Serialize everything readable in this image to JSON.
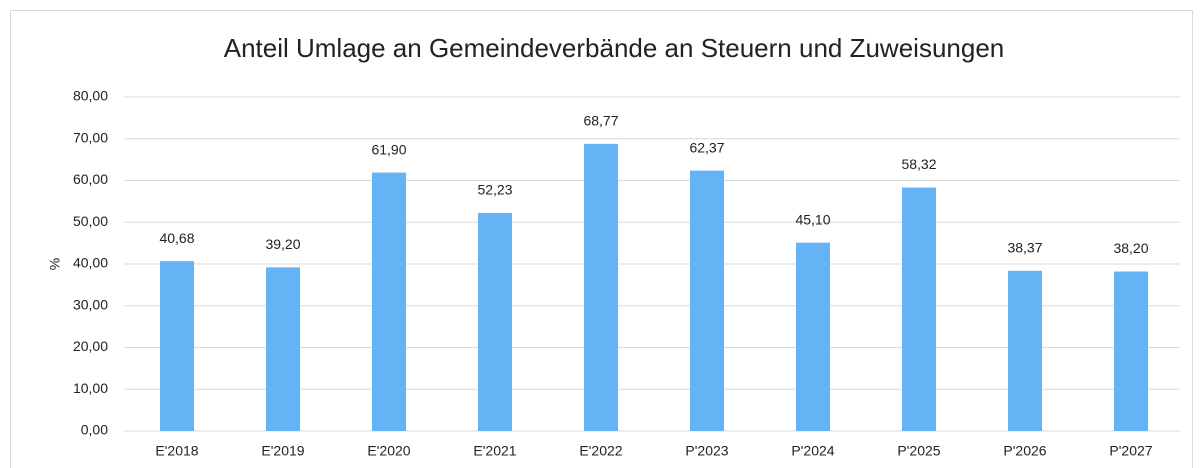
{
  "chart_data": {
    "type": "bar",
    "title": "Anteil Umlage an Gemeindeverbände an Steuern und Zuweisungen",
    "ylabel": "%",
    "categories": [
      "E'2018",
      "E'2019",
      "E'2020",
      "E'2021",
      "E'2022",
      "P'2023",
      "P'2024",
      "P'2025",
      "P'2026",
      "P'2027"
    ],
    "values": [
      40.68,
      39.2,
      61.9,
      52.23,
      68.77,
      62.37,
      45.1,
      58.32,
      38.37,
      38.2
    ],
    "value_labels": [
      "40,68",
      "39,20",
      "61,90",
      "52,23",
      "68,77",
      "62,37",
      "45,10",
      "58,32",
      "38,37",
      "38,20"
    ],
    "color": "#63b3f5",
    "ylim": [
      0,
      80
    ],
    "yticks": [
      {
        "value": 0,
        "label": "0,00"
      },
      {
        "value": 10,
        "label": "10,00"
      },
      {
        "value": 20,
        "label": "20,00"
      },
      {
        "value": 30,
        "label": "30,00"
      },
      {
        "value": 40,
        "label": "40,00"
      },
      {
        "value": 50,
        "label": "50,00"
      },
      {
        "value": 60,
        "label": "60,00"
      },
      {
        "value": 70,
        "label": "70,00"
      },
      {
        "value": 80,
        "label": "80,00"
      }
    ],
    "grid": true
  }
}
